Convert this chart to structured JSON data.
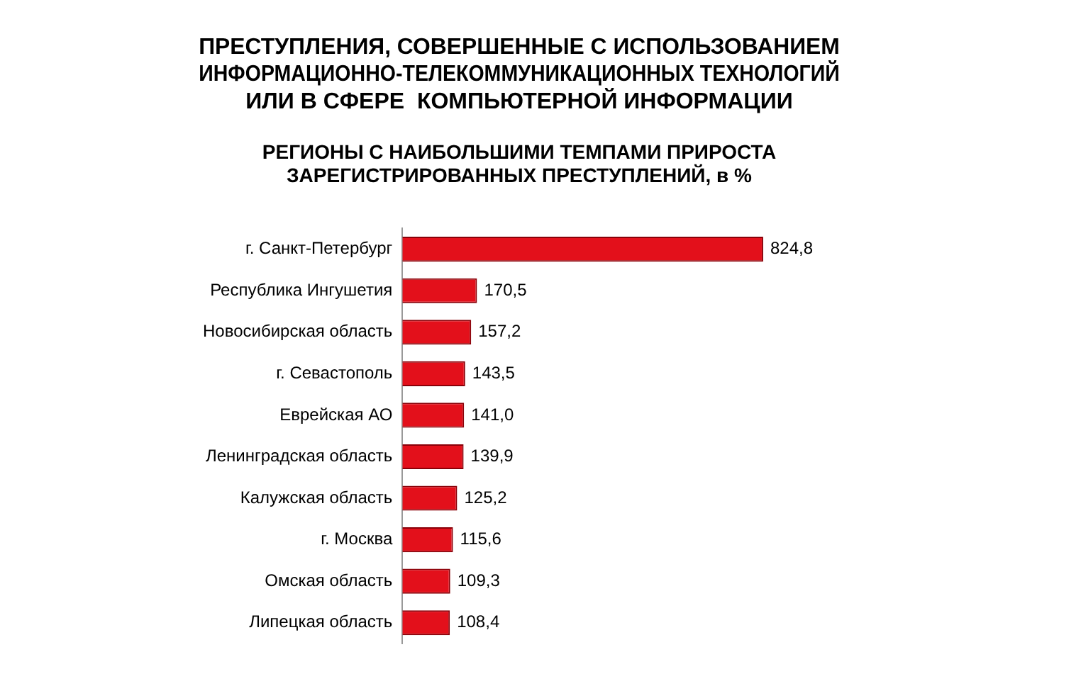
{
  "chart_data": {
    "type": "bar",
    "orientation": "horizontal",
    "title": "ПРЕСТУПЛЕНИЯ, СОВЕРШЕННЫЕ С ИСПОЛЬЗОВАНИЕМ\nИНФОРМАЦИОННО-ТЕЛЕКОММУНИКАЦИОННЫХ ТЕХНОЛОГИЙ\nИЛИ В СФЕРЕ  КОМПЬЮТЕРНОЙ ИНФОРМАЦИИ",
    "subtitle": "РЕГИОНЫ С НАИБОЛЬШИМИ ТЕМПАМИ ПРИРОСТА\nЗАРЕГИСТРИРОВАННЫХ ПРЕСТУПЛЕНИЙ, в %",
    "categories": [
      "г. Санкт-Петербург",
      "Республика Ингушетия",
      "Новосибирская область",
      "г. Севастополь",
      "Еврейская АО",
      "Ленинградская область",
      "Калужская область",
      "г. Москва",
      "Омская область",
      "Липецкая область"
    ],
    "values": [
      824.8,
      170.5,
      157.2,
      143.5,
      141.0,
      139.9,
      125.2,
      115.6,
      109.3,
      108.4
    ],
    "value_labels": [
      "824,8",
      "170,5",
      "157,2",
      "143,5",
      "141,0",
      "139,9",
      "125,2",
      "115,6",
      "109,3",
      "108,4"
    ],
    "color": "#e3101b",
    "tick_labels": "y",
    "grid": false,
    "legend": false
  }
}
